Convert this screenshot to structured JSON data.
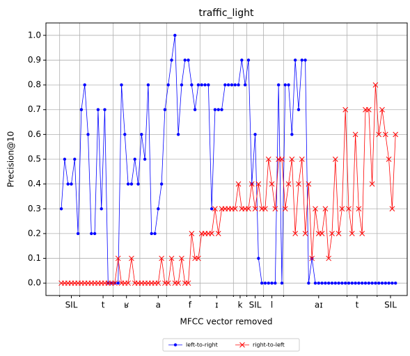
{
  "chart_data": {
    "type": "line",
    "title": "traffic_light",
    "x_label": "MFCC vector removed",
    "y_label": "Precision@10",
    "x": [
      0,
      1,
      2,
      3,
      4,
      5,
      6,
      7,
      8,
      9,
      10,
      11,
      12,
      13,
      14,
      15,
      16,
      17,
      18,
      19,
      20,
      21,
      22,
      23,
      24,
      25,
      26,
      27,
      28,
      29,
      30,
      31,
      32,
      33,
      34,
      35,
      36,
      37,
      38,
      39,
      40,
      41,
      42,
      43,
      44,
      45,
      46,
      47,
      48,
      49,
      50,
      51,
      52,
      53,
      54,
      55,
      56,
      57,
      58,
      59,
      60,
      61,
      62,
      63,
      64,
      65,
      66,
      67,
      68,
      69,
      70,
      71,
      72,
      73,
      74,
      75,
      76,
      77,
      78,
      79,
      80,
      81,
      82,
      83,
      84,
      85,
      86,
      87,
      88,
      89,
      90,
      91,
      92,
      93,
      94,
      95,
      96,
      97,
      98,
      99,
      100
    ],
    "series": [
      {
        "name": "left-to-right",
        "color": "#0000ff",
        "marker": "dot",
        "values": [
          0.3,
          0.5,
          0.4,
          0.4,
          0.5,
          0.2,
          0.7,
          0.8,
          0.6,
          0.2,
          0.2,
          0.7,
          0.3,
          0.7,
          0.0,
          0.0,
          0.0,
          0.0,
          0.8,
          0.6,
          0.4,
          0.4,
          0.5,
          0.4,
          0.6,
          0.5,
          0.8,
          0.2,
          0.2,
          0.3,
          0.4,
          0.7,
          0.8,
          0.9,
          1.0,
          0.6,
          0.8,
          0.9,
          0.9,
          0.8,
          0.7,
          0.8,
          0.8,
          0.8,
          0.8,
          0.3,
          0.7,
          0.7,
          0.7,
          0.8,
          0.8,
          0.8,
          0.8,
          0.8,
          0.9,
          0.8,
          0.9,
          0.4,
          0.6,
          0.1,
          0.0,
          0.0,
          0.0,
          0.0,
          0.0,
          0.8,
          0.0,
          0.8,
          0.8,
          0.6,
          0.9,
          0.7,
          0.9,
          0.9,
          0.0,
          0.1,
          0.0,
          0.0,
          0.0,
          0.0,
          0.0,
          0.0,
          0.0,
          0.0,
          0.0,
          0.0,
          0.0,
          0.0,
          0.0,
          0.0,
          0.0,
          0.0,
          0.0,
          0.0,
          0.0,
          0.0,
          0.0,
          0.0,
          0.0,
          0.0,
          0.0
        ]
      },
      {
        "name": "right-to-left",
        "color": "#ff0000",
        "marker": "x",
        "values": [
          0,
          0,
          0,
          0,
          0,
          0,
          0,
          0,
          0,
          0,
          0,
          0,
          0,
          0,
          0,
          0,
          0,
          0.1,
          0,
          0,
          0,
          0.1,
          0,
          0,
          0,
          0,
          0,
          0,
          0,
          0,
          0.1,
          0,
          0,
          0.1,
          0,
          0,
          0.1,
          0,
          0,
          0.2,
          0.1,
          0.1,
          0.2,
          0.2,
          0.2,
          0.2,
          0.3,
          0.2,
          0.3,
          0.3,
          0.3,
          0.3,
          0.3,
          0.4,
          0.3,
          0.3,
          0.3,
          0.4,
          0.3,
          0.4,
          0.3,
          0.3,
          0.5,
          0.4,
          0.3,
          0.5,
          0.5,
          0.3,
          0.4,
          0.5,
          0.2,
          0.4,
          0.5,
          0.2,
          0.4,
          0.1,
          0.3,
          0.2,
          0.2,
          0.3,
          0.1,
          0.2,
          0.5,
          0.2,
          0.3,
          0.7,
          0.3,
          0.2,
          0.6,
          0.3,
          0.2,
          0.7,
          0.7,
          0.4,
          0.8,
          0.6,
          0.7,
          0.6,
          0.5,
          0.3,
          0.6
        ]
      }
    ],
    "xlim": [
      -4.6,
      103.5
    ],
    "ylim": [
      -0.05,
      1.05
    ],
    "xticks": [
      {
        "value": 3,
        "label": "SIL"
      },
      {
        "value": 12.5,
        "label": "t"
      },
      {
        "value": 19.5,
        "label": "ʁ"
      },
      {
        "value": 29,
        "label": "a"
      },
      {
        "value": 38.5,
        "label": "f"
      },
      {
        "value": 46.5,
        "label": "ɪ"
      },
      {
        "value": 53.5,
        "label": "k"
      },
      {
        "value": 58,
        "label": "SIL"
      },
      {
        "value": 63,
        "label": "l"
      },
      {
        "value": 77,
        "label": "aɪ"
      },
      {
        "value": 88.5,
        "label": "t"
      },
      {
        "value": 98.5,
        "label": "SIL"
      }
    ],
    "x_minor_ticks": [
      -0.5,
      5.5,
      15.5,
      23.5,
      31.5,
      41.5,
      51.5,
      55.5,
      60.5,
      66.5,
      85.5,
      94.5
    ],
    "yticks": [
      {
        "value": 0,
        "label": "0.0"
      },
      {
        "value": 0.1,
        "label": "0.1"
      },
      {
        "value": 0.2,
        "label": "0.2"
      },
      {
        "value": 0.3,
        "label": "0.3"
      },
      {
        "value": 0.4,
        "label": "0.4"
      },
      {
        "value": 0.5,
        "label": "0.5"
      },
      {
        "value": 0.6,
        "label": "0.6"
      },
      {
        "value": 0.7,
        "label": "0.7"
      },
      {
        "value": 0.8,
        "label": "0.8"
      },
      {
        "value": 0.9,
        "label": "0.9"
      },
      {
        "value": 1.0,
        "label": "1.0"
      }
    ],
    "grid": true,
    "legend": "bottom"
  }
}
